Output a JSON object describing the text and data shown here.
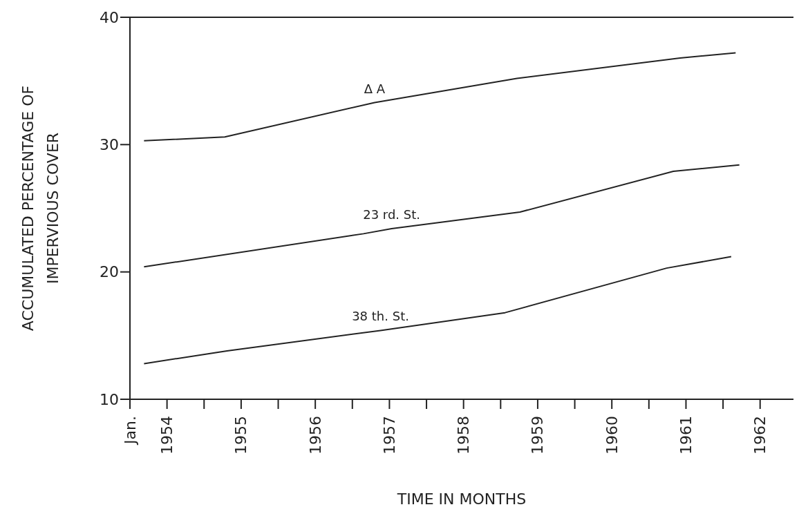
{
  "chart_data": {
    "type": "line",
    "xlabel": "TIME IN MONTHS",
    "ylabel": "ACCUMULATED PERCENTAGE OF\nIMPERVIOUS COVER",
    "xlim": [
      1954,
      1962.95
    ],
    "xticks": [
      {
        "value": 1954,
        "label": "Jan."
      },
      {
        "value": 1954.5,
        "label": "1954"
      },
      {
        "value": 1955,
        "label": null
      },
      {
        "value": 1955.5,
        "label": "1955"
      },
      {
        "value": 1956,
        "label": null
      },
      {
        "value": 1956.5,
        "label": "1956"
      },
      {
        "value": 1957,
        "label": null
      },
      {
        "value": 1957.5,
        "label": "1957"
      },
      {
        "value": 1958,
        "label": null
      },
      {
        "value": 1958.5,
        "label": "1958"
      },
      {
        "value": 1959,
        "label": null
      },
      {
        "value": 1959.5,
        "label": "1959"
      },
      {
        "value": 1960,
        "label": null
      },
      {
        "value": 1960.5,
        "label": "1960"
      },
      {
        "value": 1961,
        "label": null
      },
      {
        "value": 1961.5,
        "label": "1961"
      },
      {
        "value": 1962,
        "label": null
      },
      {
        "value": 1962.5,
        "label": "1962"
      }
    ],
    "ylim": [
      10,
      40
    ],
    "yticks": [
      10,
      20,
      30,
      40
    ],
    "grid": false,
    "legend": false,
    "marker": "none",
    "line_style": "solid",
    "series": [
      {
        "name": "Δ A",
        "color": "#222222",
        "x": [
          1954.19,
          1955.28,
          1957.3,
          1959.22,
          1961.42,
          1962.17
        ],
        "values": [
          30.3,
          30.6,
          33.3,
          35.2,
          36.8,
          37.2
        ]
      },
      {
        "name": "23 rd. St.",
        "color": "#222222",
        "x": [
          1954.19,
          1957.15,
          1957.53,
          1959.26,
          1961.33,
          1962.22
        ],
        "values": [
          20.4,
          23.0,
          23.4,
          24.7,
          27.9,
          28.4
        ]
      },
      {
        "name": "38 th. St.",
        "color": "#222222",
        "x": [
          1954.19,
          1955.31,
          1957.38,
          1959.06,
          1961.24,
          1962.11
        ],
        "values": [
          12.8,
          13.8,
          15.4,
          16.8,
          20.3,
          21.2
        ]
      }
    ]
  }
}
